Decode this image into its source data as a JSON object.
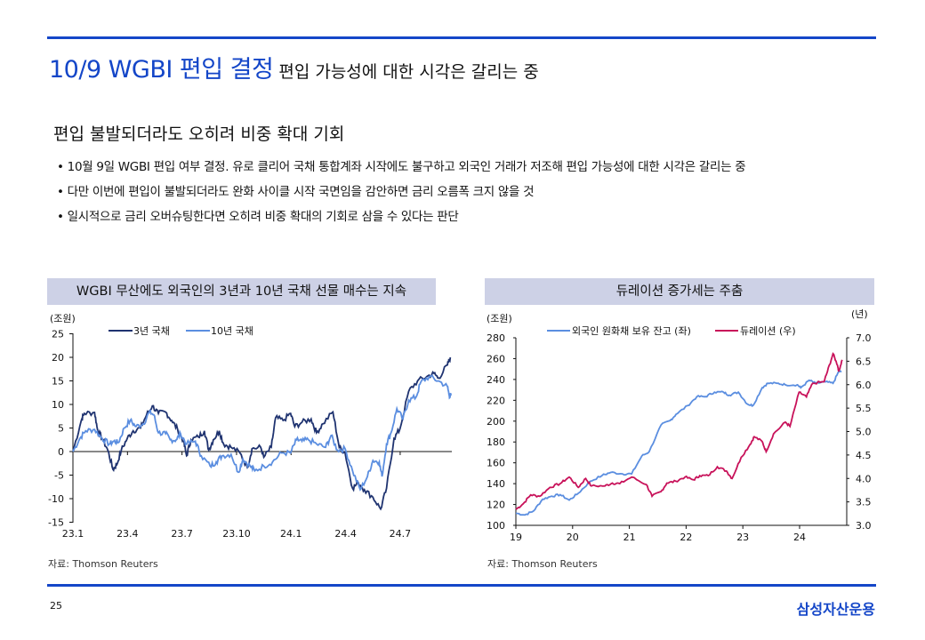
{
  "header": {
    "title": "10/9 WGBI 편입 결정",
    "subtitle": "편입 가능성에 대한 시각은 갈리는 중"
  },
  "section_title": "편입 불발되더라도 오히려 비중 확대 기회",
  "bullets": [
    "• 10월 9일 WGBI 편입 여부 결정. 유로 클리어 국채 통합계좌 시작에도 불구하고 외국인 거래가 저조해 편입 가능성에 대한 시각은 갈리는 중",
    "• 다만 이번에 편입이 불발되더라도 완화 사이클 시작 국면임을 감안하면 금리 오름폭 크지 않을 것",
    "•  일시적으로 금리 오버슈팅한다면 오히려 비중 확대의 기회로 삼을 수 있다는 판단"
  ],
  "footer": {
    "page": "25",
    "logo": "삼성자산운용"
  },
  "colors": {
    "accent": "#1446c8",
    "navy": "#1f3370",
    "light_blue": "#5b8ee0",
    "crimson": "#c8125a"
  },
  "chart_data": [
    {
      "type": "line",
      "title": "WGBI 무산에도 외국인의 3년과 10년 국채 선물 매수는 지속",
      "unit": "(조원)",
      "source": "자료:  Thomson Reuters",
      "x_ticks": [
        "23.1",
        "23.4",
        "23.7",
        "23.10",
        "24.1",
        "24.4",
        "24.7"
      ],
      "x_unit": "months since 23.1",
      "x_tick_values": [
        0,
        3,
        6,
        9,
        12,
        15,
        18
      ],
      "y_ticks": [
        25,
        20,
        15,
        10,
        5,
        0,
        -5,
        -10,
        -15
      ],
      "ylim": [
        -15,
        25
      ],
      "series": [
        {
          "name": "3년 국채",
          "color": "#1f3370",
          "points": [
            [
              0,
              0
            ],
            [
              0.46,
              6.6
            ],
            [
              0.62,
              8.1
            ],
            [
              1.19,
              8.3
            ],
            [
              1.35,
              4.7
            ],
            [
              1.6,
              2.8
            ],
            [
              1.92,
              0.3
            ],
            [
              2.2,
              -3.8
            ],
            [
              2.41,
              -2.8
            ],
            [
              2.66,
              0.3
            ],
            [
              2.99,
              2.8
            ],
            [
              3.31,
              4.4
            ],
            [
              3.72,
              5
            ],
            [
              4.05,
              7.8
            ],
            [
              4.37,
              9.7
            ],
            [
              4.7,
              8.1
            ],
            [
              5.1,
              8.4
            ],
            [
              5.43,
              6.6
            ],
            [
              5.76,
              4.7
            ],
            [
              6.08,
              2.2
            ],
            [
              6.25,
              -0.9
            ],
            [
              6.49,
              2.5
            ],
            [
              6.9,
              3.1
            ],
            [
              7.23,
              4.4
            ],
            [
              7.47,
              0.3
            ],
            [
              7.72,
              2.5
            ],
            [
              8.05,
              4.4
            ],
            [
              8.29,
              1.6
            ],
            [
              8.7,
              0.9
            ],
            [
              9.19,
              -0.3
            ],
            [
              9.6,
              -3.4
            ],
            [
              9.85,
              0.6
            ],
            [
              10.33,
              0.9
            ],
            [
              10.5,
              -1.2
            ],
            [
              10.91,
              0.9
            ],
            [
              11.15,
              7.2
            ],
            [
              11.56,
              6.6
            ],
            [
              11.97,
              8.1
            ],
            [
              12.2,
              5.3
            ],
            [
              12.6,
              6.2
            ],
            [
              13.1,
              6.9
            ],
            [
              13.4,
              4
            ],
            [
              13.75,
              5.9
            ],
            [
              14.3,
              8.4
            ],
            [
              14.65,
              0.9
            ],
            [
              14.97,
              -0.3
            ],
            [
              15.38,
              -7.8
            ],
            [
              15.7,
              -6.6
            ],
            [
              16.03,
              -8.1
            ],
            [
              16.5,
              -9.7
            ],
            [
              16.93,
              -12.2
            ],
            [
              17.25,
              -7.8
            ],
            [
              17.66,
              2.8
            ],
            [
              17.98,
              4.7
            ],
            [
              18.47,
              12.8
            ],
            [
              18.96,
              15
            ],
            [
              19.46,
              15.9
            ],
            [
              19.86,
              16.6
            ],
            [
              20.11,
              15.6
            ],
            [
              20.6,
              18.4
            ],
            [
              20.76,
              20
            ]
          ]
        },
        {
          "name": "10년 국채",
          "color": "#5b8ee0",
          "points": [
            [
              0,
              0
            ],
            [
              0.38,
              2.8
            ],
            [
              0.7,
              4.4
            ],
            [
              1.19,
              4.7
            ],
            [
              1.6,
              2.8
            ],
            [
              2,
              1.6
            ],
            [
              2.25,
              2.2
            ],
            [
              2.5,
              1.9
            ],
            [
              2.82,
              5
            ],
            [
              3.15,
              6.6
            ],
            [
              3.47,
              5.3
            ],
            [
              3.88,
              5.9
            ],
            [
              4.21,
              8.4
            ],
            [
              4.45,
              7.8
            ],
            [
              4.7,
              4
            ],
            [
              5.1,
              3.8
            ],
            [
              5.35,
              2.5
            ],
            [
              5.68,
              2.5
            ],
            [
              5.92,
              3.8
            ],
            [
              6.25,
              1.6
            ],
            [
              6.73,
              2.2
            ],
            [
              7.06,
              -0.9
            ],
            [
              7.55,
              -3.1
            ],
            [
              7.88,
              -2.2
            ],
            [
              8.2,
              -0.9
            ],
            [
              8.7,
              -0.6
            ],
            [
              9.1,
              -4.4
            ],
            [
              9.35,
              -1.6
            ],
            [
              9.75,
              -3.1
            ],
            [
              10,
              -4.1
            ],
            [
              10.5,
              -3.1
            ],
            [
              10.98,
              -2.2
            ],
            [
              11.47,
              -0.3
            ],
            [
              11.97,
              -0.3
            ],
            [
              12.3,
              2.5
            ],
            [
              12.6,
              2.2
            ],
            [
              12.95,
              2.5
            ],
            [
              13.4,
              1.6
            ],
            [
              13.9,
              0.9
            ],
            [
              14.2,
              3.4
            ],
            [
              14.55,
              0.3
            ],
            [
              14.97,
              0.6
            ],
            [
              15.38,
              -4.1
            ],
            [
              15.8,
              -8.1
            ],
            [
              16.2,
              -5.3
            ],
            [
              16.5,
              -1.9
            ],
            [
              16.85,
              -2.2
            ],
            [
              17,
              -5.3
            ],
            [
              17.25,
              1.6
            ],
            [
              17.5,
              4
            ],
            [
              17.82,
              9.1
            ],
            [
              18.15,
              6.9
            ],
            [
              18.47,
              10.9
            ],
            [
              18.88,
              11.6
            ],
            [
              19.13,
              14.7
            ],
            [
              19.6,
              15.9
            ],
            [
              20.1,
              15
            ],
            [
              20.6,
              13.8
            ],
            [
              20.7,
              11.9
            ],
            [
              20.8,
              11.9
            ]
          ]
        }
      ]
    },
    {
      "type": "line",
      "title": "듀레이션 증가세는 주춤",
      "unit_left": "(조원)",
      "unit_right": "(년)",
      "source": "자료:  Thomson Reuters",
      "x_ticks": [
        "19",
        "20",
        "21",
        "22",
        "23",
        "24"
      ],
      "x_unit": "years since 2019",
      "x_tick_values": [
        0,
        1,
        2,
        3,
        4,
        5
      ],
      "y_left_ticks": [
        280,
        260,
        240,
        220,
        200,
        180,
        160,
        140,
        120,
        100
      ],
      "ylim_left": [
        100,
        280
      ],
      "y_right_ticks": [
        "7.0",
        "6.5",
        "6.0",
        "5.5",
        "5.0",
        "4.5",
        "4.0",
        "3.5",
        "3.0"
      ],
      "ylim_right": [
        3.0,
        7.0
      ],
      "series": [
        {
          "name": "외국인 원화채 보유 잔고 (좌)",
          "axis": "left",
          "color": "#5b8ee0",
          "points": [
            [
              0,
              111.7
            ],
            [
              0.16,
              110
            ],
            [
              0.31,
              113.7
            ],
            [
              0.47,
              125
            ],
            [
              0.63,
              128
            ],
            [
              0.78,
              129.4
            ],
            [
              0.94,
              124.2
            ],
            [
              1.1,
              130.8
            ],
            [
              1.31,
              142.2
            ],
            [
              1.52,
              147.9
            ],
            [
              1.67,
              150.8
            ],
            [
              1.88,
              149.4
            ],
            [
              2.04,
              149.4
            ],
            [
              2.22,
              166.5
            ],
            [
              2.35,
              170.7
            ],
            [
              2.56,
              196.4
            ],
            [
              2.72,
              200.6
            ],
            [
              2.82,
              206.4
            ],
            [
              3.03,
              214.9
            ],
            [
              3.19,
              223.5
            ],
            [
              3.34,
              223.5
            ],
            [
              3.5,
              227.8
            ],
            [
              3.66,
              227.8
            ],
            [
              3.76,
              224.9
            ],
            [
              3.92,
              227.8
            ],
            [
              4.08,
              216.4
            ],
            [
              4.18,
              215
            ],
            [
              4.34,
              232.1
            ],
            [
              4.44,
              236.3
            ],
            [
              4.6,
              236.3
            ],
            [
              4.75,
              234.9
            ],
            [
              4.96,
              234.9
            ],
            [
              5.02,
              232.1
            ],
            [
              5.17,
              239.2
            ],
            [
              5.28,
              236.3
            ],
            [
              5.46,
              237.7
            ],
            [
              5.59,
              236.3
            ],
            [
              5.69,
              247.7
            ],
            [
              5.74,
              247.7
            ]
          ]
        },
        {
          "name": "듀레이션 (우)",
          "axis": "right",
          "color": "#c8125a",
          "points": [
            [
              0,
              3.34
            ],
            [
              0.13,
              3.46
            ],
            [
              0.26,
              3.65
            ],
            [
              0.42,
              3.62
            ],
            [
              0.6,
              3.81
            ],
            [
              0.78,
              3.89
            ],
            [
              0.94,
              4.03
            ],
            [
              1.1,
              3.81
            ],
            [
              1.23,
              4.0
            ],
            [
              1.33,
              3.84
            ],
            [
              1.57,
              3.84
            ],
            [
              1.7,
              3.9
            ],
            [
              1.83,
              3.89
            ],
            [
              2.04,
              4.03
            ],
            [
              2.3,
              3.87
            ],
            [
              2.4,
              3.62
            ],
            [
              2.56,
              3.72
            ],
            [
              2.66,
              3.9
            ],
            [
              2.82,
              3.94
            ],
            [
              2.98,
              4.03
            ],
            [
              3.13,
              3.97
            ],
            [
              3.24,
              4.06
            ],
            [
              3.39,
              4.06
            ],
            [
              3.55,
              4.25
            ],
            [
              3.71,
              4.16
            ],
            [
              3.81,
              4.0
            ],
            [
              3.97,
              4.45
            ],
            [
              4.13,
              4.73
            ],
            [
              4.2,
              4.89
            ],
            [
              4.34,
              4.79
            ],
            [
              4.41,
              4.57
            ],
            [
              4.54,
              4.95
            ],
            [
              4.75,
              5.2
            ],
            [
              4.83,
              5.11
            ],
            [
              4.99,
              5.84
            ],
            [
              5.12,
              5.74
            ],
            [
              5.23,
              6.03
            ],
            [
              5.43,
              6.06
            ],
            [
              5.49,
              6.28
            ],
            [
              5.59,
              6.66
            ],
            [
              5.67,
              6.41
            ],
            [
              5.69,
              6.28
            ],
            [
              5.75,
              6.53
            ]
          ]
        }
      ]
    }
  ]
}
